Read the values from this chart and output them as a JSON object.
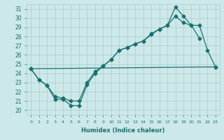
{
  "bg_color": "#cce8e8",
  "grid_color": "#aacccc",
  "line_color": "#1a7070",
  "xlabel": "Humidex (Indice chaleur)",
  "xlim": [
    -0.5,
    23.5
  ],
  "ylim": [
    19.5,
    31.5
  ],
  "xticks": [
    0,
    1,
    2,
    3,
    4,
    5,
    6,
    7,
    8,
    9,
    10,
    11,
    12,
    13,
    14,
    15,
    16,
    17,
    18,
    19,
    20,
    21,
    22,
    23
  ],
  "yticks": [
    20,
    21,
    22,
    23,
    24,
    25,
    26,
    27,
    28,
    29,
    30,
    31
  ],
  "line1_x": [
    0,
    1,
    2,
    3,
    4,
    5,
    6,
    7,
    8,
    9,
    10,
    11,
    12,
    13,
    14,
    15,
    16,
    17,
    18,
    19,
    20,
    21
  ],
  "line1_y": [
    24.5,
    23.3,
    22.7,
    21.2,
    21.2,
    20.5,
    20.5,
    22.8,
    24.0,
    24.8,
    25.5,
    26.5,
    26.8,
    27.2,
    27.5,
    28.3,
    28.8,
    29.2,
    31.2,
    30.2,
    29.2,
    27.8
  ],
  "line2_x": [
    0,
    1,
    2,
    3,
    4,
    5,
    6,
    7,
    8,
    9,
    10,
    11,
    12,
    13,
    14,
    15,
    16,
    17,
    18,
    19,
    20,
    21,
    22,
    23
  ],
  "line2_y": [
    24.5,
    23.3,
    22.7,
    21.5,
    21.3,
    21.0,
    21.0,
    23.0,
    24.2,
    24.8,
    25.5,
    26.5,
    26.8,
    27.2,
    27.5,
    28.2,
    28.8,
    29.2,
    30.2,
    29.5,
    29.2,
    29.2,
    26.5,
    24.7
  ],
  "line3_x": [
    0,
    23
  ],
  "line3_y": [
    24.5,
    24.7
  ]
}
